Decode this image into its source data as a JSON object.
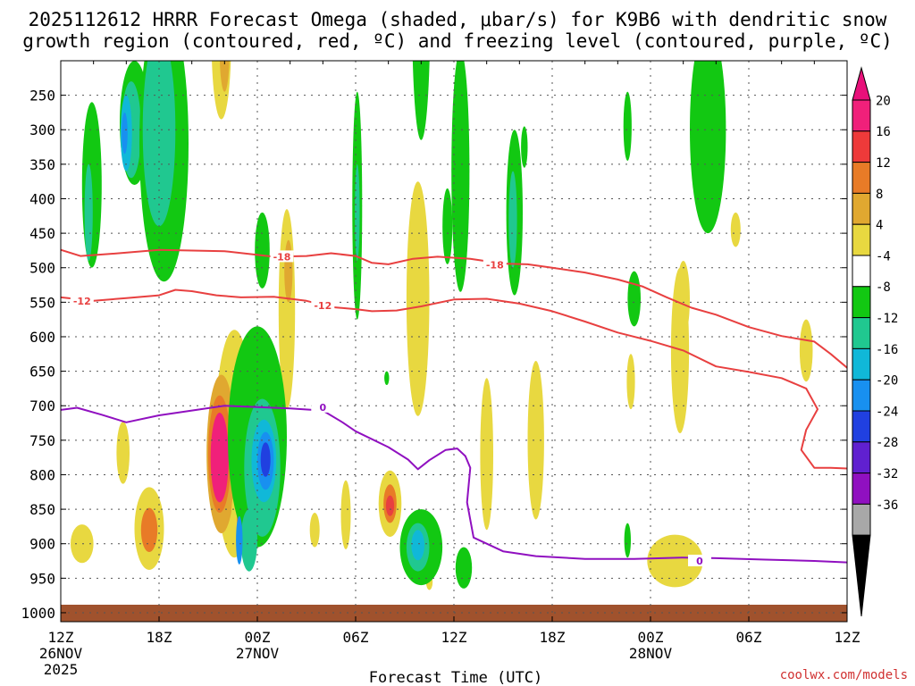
{
  "title_line1": "2025112612 HRRR Forecast Omega (shaded, μbar/s) for K9B6 with dendritic snow",
  "title_line2": "growth region (contoured, red, ºC) and freezing level (contoured, purple, ºC)",
  "xlabel": "Forecast Time (UTC)",
  "credit": "coolwx.com/models",
  "chart_data": {
    "type": "heatmap",
    "y_ticks": [
      250,
      300,
      350,
      400,
      450,
      500,
      550,
      600,
      650,
      700,
      750,
      800,
      850,
      900,
      950,
      1000
    ],
    "y_range": [
      200,
      1013
    ],
    "x_range_hours": [
      0,
      48
    ],
    "x_ticks": [
      {
        "h": 0,
        "label": "12Z",
        "sub1": "26NOV",
        "sub2": "2025"
      },
      {
        "h": 6,
        "label": "18Z",
        "sub1": "",
        "sub2": ""
      },
      {
        "h": 12,
        "label": "00Z",
        "sub1": "27NOV",
        "sub2": ""
      },
      {
        "h": 18,
        "label": "06Z",
        "sub1": "",
        "sub2": ""
      },
      {
        "h": 24,
        "label": "12Z",
        "sub1": "",
        "sub2": ""
      },
      {
        "h": 30,
        "label": "18Z",
        "sub1": "",
        "sub2": ""
      },
      {
        "h": 36,
        "label": "00Z",
        "sub1": "28NOV",
        "sub2": ""
      },
      {
        "h": 42,
        "label": "06Z",
        "sub1": "",
        "sub2": ""
      },
      {
        "h": 48,
        "label": "12Z",
        "sub1": "",
        "sub2": ""
      }
    ],
    "colorbar": {
      "labels": [
        "20",
        "16",
        "12",
        "8",
        "4",
        "-4",
        "-8",
        "-12",
        "-16",
        "-20",
        "-24",
        "-28",
        "-32",
        "-36"
      ],
      "colors": [
        "#f0207a",
        "#ee3a3a",
        "#e87b27",
        "#e0a830",
        "#e8d840",
        "#ffffff",
        "#12c812",
        "#20c890",
        "#10b8d8",
        "#1890f0",
        "#2040e0",
        "#6020d0",
        "#9010c0",
        "#a8a8a8"
      ],
      "top_triangle": "#e8107a",
      "bottom_triangle": "#000000"
    },
    "contours": [
      {
        "name": "-18",
        "color": "#e84040",
        "labels": [
          {
            "text": "-18",
            "h": 13.5,
            "p": 484
          },
          {
            "text": "-18",
            "h": 26.5,
            "p": 496
          }
        ],
        "points": [
          [
            0,
            474
          ],
          [
            1.2,
            483
          ],
          [
            3,
            480
          ],
          [
            6,
            474
          ],
          [
            10,
            476
          ],
          [
            13,
            484
          ],
          [
            15,
            483
          ],
          [
            16.5,
            479
          ],
          [
            18,
            483
          ],
          [
            19,
            493
          ],
          [
            20,
            495
          ],
          [
            21.5,
            487
          ],
          [
            23,
            484
          ],
          [
            25,
            487
          ],
          [
            27,
            494
          ],
          [
            28.5,
            495
          ],
          [
            30,
            500
          ],
          [
            32,
            507
          ],
          [
            34,
            517
          ],
          [
            35.5,
            527
          ],
          [
            37,
            543
          ],
          [
            38.5,
            558
          ],
          [
            40,
            568
          ],
          [
            42,
            586
          ],
          [
            44,
            599
          ],
          [
            46,
            607
          ],
          [
            47,
            625
          ],
          [
            48,
            645
          ]
        ]
      },
      {
        "name": "-12",
        "color": "#e84040",
        "labels": [
          {
            "text": "-12",
            "h": 1.3,
            "p": 548
          },
          {
            "text": "-12",
            "h": 16,
            "p": 555
          }
        ],
        "points": [
          [
            0,
            543
          ],
          [
            2,
            548
          ],
          [
            4,
            544
          ],
          [
            6,
            540
          ],
          [
            7,
            532
          ],
          [
            8,
            534
          ],
          [
            9.5,
            540
          ],
          [
            11,
            543
          ],
          [
            13,
            542
          ],
          [
            15,
            548
          ],
          [
            16.5,
            557
          ],
          [
            18,
            560
          ],
          [
            19,
            563
          ],
          [
            20.5,
            562
          ],
          [
            22,
            556
          ],
          [
            24,
            546
          ],
          [
            26,
            545
          ],
          [
            28,
            552
          ],
          [
            30,
            563
          ],
          [
            32,
            578
          ],
          [
            34,
            594
          ],
          [
            36,
            606
          ],
          [
            38,
            620
          ],
          [
            40,
            643
          ],
          [
            42,
            651
          ],
          [
            44,
            660
          ],
          [
            45.5,
            675
          ],
          [
            46.2,
            705
          ],
          [
            45.5,
            735
          ],
          [
            45.2,
            764
          ],
          [
            46,
            790
          ],
          [
            47,
            790
          ],
          [
            48,
            791
          ]
        ]
      },
      {
        "name": "0",
        "color": "#9010c0",
        "labels": [
          {
            "text": "0",
            "h": 16,
            "p": 702
          },
          {
            "text": "0",
            "h": 39,
            "p": 925
          }
        ],
        "points": [
          [
            0,
            706
          ],
          [
            1,
            703
          ],
          [
            2.5,
            713
          ],
          [
            4,
            724
          ],
          [
            6,
            714
          ],
          [
            8,
            707
          ],
          [
            10,
            700
          ],
          [
            12,
            702
          ],
          [
            14,
            704
          ],
          [
            16,
            707
          ],
          [
            17.2,
            724
          ],
          [
            18,
            737
          ],
          [
            20,
            760
          ],
          [
            21.2,
            778
          ],
          [
            21.8,
            792
          ],
          [
            22.5,
            779
          ],
          [
            23.5,
            764
          ],
          [
            24.2,
            762
          ],
          [
            24.7,
            773
          ],
          [
            25,
            790
          ],
          [
            24.8,
            840
          ],
          [
            25.2,
            891
          ],
          [
            27,
            911
          ],
          [
            29,
            918
          ],
          [
            32,
            922
          ],
          [
            35,
            922
          ],
          [
            38,
            920
          ],
          [
            40,
            921
          ],
          [
            43,
            923
          ],
          [
            46,
            925
          ],
          [
            48,
            927
          ]
        ]
      }
    ],
    "omega_blobs": [
      {
        "h": 9.8,
        "p": 170,
        "rh": 0.6,
        "rp": 115,
        "c": "#e8d840"
      },
      {
        "h": 10.0,
        "p": 185,
        "rh": 0.3,
        "rp": 60,
        "c": "#e0a830"
      },
      {
        "h": 10.6,
        "p": 755,
        "rh": 1.2,
        "rp": 165,
        "c": "#e8d840"
      },
      {
        "h": 9.8,
        "p": 770,
        "rh": 0.9,
        "rp": 115,
        "c": "#e0a830"
      },
      {
        "h": 9.7,
        "p": 770,
        "rh": 0.7,
        "rp": 85,
        "c": "#e87b27"
      },
      {
        "h": 9.7,
        "p": 775,
        "rh": 0.55,
        "rp": 65,
        "c": "#f0207a"
      },
      {
        "h": 13.8,
        "p": 560,
        "rh": 0.5,
        "rp": 145,
        "c": "#e8d840"
      },
      {
        "h": 13.9,
        "p": 505,
        "rh": 0.25,
        "rp": 45,
        "c": "#e0a830"
      },
      {
        "h": 11.1,
        "p": 860,
        "rh": 0.7,
        "rp": 50,
        "c": "#e8d840"
      },
      {
        "h": 11.1,
        "p": 865,
        "rh": 0.35,
        "rp": 25,
        "c": "#e87b27"
      },
      {
        "h": 5.4,
        "p": 878,
        "rh": 0.9,
        "rp": 60,
        "c": "#e8d840"
      },
      {
        "h": 5.4,
        "p": 880,
        "rh": 0.5,
        "rp": 32,
        "c": "#e87b27"
      },
      {
        "h": 3.8,
        "p": 768,
        "rh": 0.4,
        "rp": 45,
        "c": "#e8d840"
      },
      {
        "h": 1.3,
        "p": 900,
        "rh": 0.7,
        "rp": 28,
        "c": "#e8d840"
      },
      {
        "h": 21.8,
        "p": 545,
        "rh": 0.7,
        "rp": 170,
        "c": "#e8d840"
      },
      {
        "h": 20.1,
        "p": 842,
        "rh": 0.7,
        "rp": 48,
        "c": "#e8d840"
      },
      {
        "h": 20.1,
        "p": 842,
        "rh": 0.4,
        "rp": 28,
        "c": "#e87b27"
      },
      {
        "h": 20.1,
        "p": 845,
        "rh": 0.25,
        "rp": 15,
        "c": "#e84040"
      },
      {
        "h": 26.0,
        "p": 770,
        "rh": 0.4,
        "rp": 110,
        "c": "#e8d840"
      },
      {
        "h": 29.0,
        "p": 750,
        "rh": 0.5,
        "rp": 115,
        "c": "#e8d840"
      },
      {
        "h": 37.5,
        "p": 925,
        "rh": 1.7,
        "rp": 38,
        "c": "#e8d840"
      },
      {
        "h": 34.8,
        "p": 665,
        "rh": 0.25,
        "rp": 40,
        "c": "#e8d840"
      },
      {
        "h": 37.8,
        "p": 620,
        "rh": 0.55,
        "rp": 120,
        "c": "#e8d840"
      },
      {
        "h": 38.0,
        "p": 545,
        "rh": 0.4,
        "rp": 55,
        "c": "#e8d840"
      },
      {
        "h": 41.2,
        "p": 445,
        "rh": 0.3,
        "rp": 25,
        "c": "#e8d840"
      },
      {
        "h": 45.5,
        "p": 620,
        "rh": 0.4,
        "rp": 45,
        "c": "#e8d840"
      },
      {
        "h": 17.4,
        "p": 858,
        "rh": 0.3,
        "rp": 50,
        "c": "#e8d840"
      },
      {
        "h": 15.5,
        "p": 880,
        "rh": 0.3,
        "rp": 25,
        "c": "#e8d840"
      },
      {
        "h": 22.5,
        "p": 955,
        "rh": 0.2,
        "rp": 12,
        "c": "#e8d840"
      },
      {
        "h": 1.9,
        "p": 380,
        "rh": 0.6,
        "rp": 120,
        "c": "#12c812"
      },
      {
        "h": 1.7,
        "p": 420,
        "rh": 0.25,
        "rp": 70,
        "c": "#20c890"
      },
      {
        "h": 4.5,
        "p": 290,
        "rh": 0.9,
        "rp": 90,
        "c": "#12c812"
      },
      {
        "h": 4.3,
        "p": 300,
        "rh": 0.6,
        "rp": 70,
        "c": "#20c890"
      },
      {
        "h": 4.0,
        "p": 305,
        "rh": 0.35,
        "rp": 55,
        "c": "#10b8d8"
      },
      {
        "h": 3.9,
        "p": 305,
        "rh": 0.18,
        "rp": 30,
        "c": "#1890f0"
      },
      {
        "h": 6.3,
        "p": 320,
        "rh": 1.5,
        "rp": 200,
        "c": "#12c812"
      },
      {
        "h": 6.0,
        "p": 300,
        "rh": 1.0,
        "rp": 140,
        "c": "#20c890"
      },
      {
        "h": 12.3,
        "p": 475,
        "rh": 0.45,
        "rp": 55,
        "c": "#12c812"
      },
      {
        "h": 12.0,
        "p": 745,
        "rh": 1.8,
        "rp": 160,
        "c": "#12c812"
      },
      {
        "h": 12.3,
        "p": 790,
        "rh": 1.1,
        "rp": 100,
        "c": "#20c890"
      },
      {
        "h": 12.4,
        "p": 780,
        "rh": 0.75,
        "rp": 60,
        "c": "#10b8d8"
      },
      {
        "h": 12.5,
        "p": 780,
        "rh": 0.5,
        "rp": 42,
        "c": "#1890f0"
      },
      {
        "h": 12.5,
        "p": 778,
        "rh": 0.3,
        "rp": 25,
        "c": "#2040e0"
      },
      {
        "h": 11.5,
        "p": 895,
        "rh": 0.5,
        "rp": 45,
        "c": "#20c890"
      },
      {
        "h": 10.9,
        "p": 895,
        "rh": 0.2,
        "rp": 35,
        "c": "#1890f0"
      },
      {
        "h": 18.1,
        "p": 410,
        "rh": 0.3,
        "rp": 165,
        "c": "#12c812"
      },
      {
        "h": 18.1,
        "p": 420,
        "rh": 0.15,
        "rp": 70,
        "c": "#20c890"
      },
      {
        "h": 22.0,
        "p": 135,
        "rh": 0.55,
        "rp": 180,
        "c": "#12c812"
      },
      {
        "h": 24.4,
        "p": 360,
        "rh": 0.55,
        "rp": 175,
        "c": "#12c812"
      },
      {
        "h": 23.6,
        "p": 440,
        "rh": 0.3,
        "rp": 55,
        "c": "#12c812"
      },
      {
        "h": 27.7,
        "p": 420,
        "rh": 0.5,
        "rp": 120,
        "c": "#12c812"
      },
      {
        "h": 27.6,
        "p": 430,
        "rh": 0.25,
        "rp": 70,
        "c": "#20c890"
      },
      {
        "h": 28.3,
        "p": 325,
        "rh": 0.2,
        "rp": 30,
        "c": "#12c812"
      },
      {
        "h": 22.0,
        "p": 905,
        "rh": 1.3,
        "rp": 55,
        "c": "#12c812"
      },
      {
        "h": 21.8,
        "p": 905,
        "rh": 0.7,
        "rp": 35,
        "c": "#20c890"
      },
      {
        "h": 21.8,
        "p": 902,
        "rh": 0.4,
        "rp": 22,
        "c": "#10b8d8"
      },
      {
        "h": 24.6,
        "p": 935,
        "rh": 0.5,
        "rp": 30,
        "c": "#12c812"
      },
      {
        "h": 34.6,
        "p": 295,
        "rh": 0.25,
        "rp": 50,
        "c": "#12c812"
      },
      {
        "h": 39.5,
        "p": 300,
        "rh": 1.1,
        "rp": 150,
        "c": "#12c812"
      },
      {
        "h": 35.0,
        "p": 545,
        "rh": 0.4,
        "rp": 40,
        "c": "#12c812"
      },
      {
        "h": 34.6,
        "p": 895,
        "rh": 0.2,
        "rp": 25,
        "c": "#12c812"
      },
      {
        "h": 19.9,
        "p": 660,
        "rh": 0.15,
        "rp": 10,
        "c": "#12c812"
      }
    ]
  }
}
